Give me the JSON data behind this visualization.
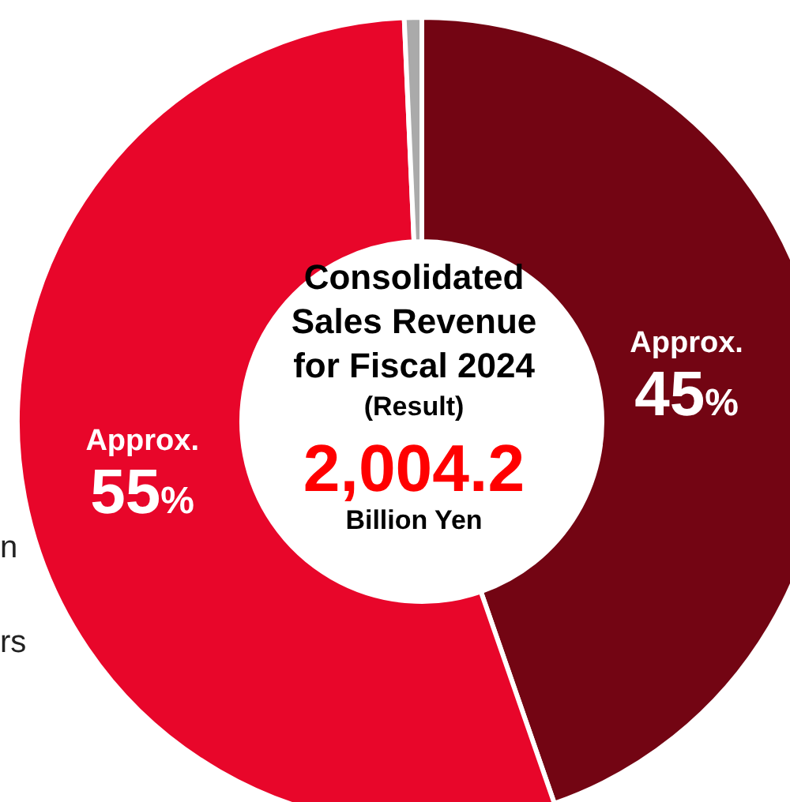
{
  "chart_data": {
    "type": "donut",
    "title": "Consolidated Sales Revenue for Fiscal 2024",
    "subtitle": "(Result)",
    "categories": [
      null,
      null,
      null
    ],
    "values": [
      45,
      55,
      0.7
    ],
    "colors": [
      "#730513",
      "#e8062a",
      "#aaaaaa"
    ],
    "value_labels": [
      "Approx. 45%",
      "Approx. 55%",
      null
    ],
    "annotations": [
      "2,004.2",
      "Billion Yen",
      "n",
      "rs"
    ]
  }
}
